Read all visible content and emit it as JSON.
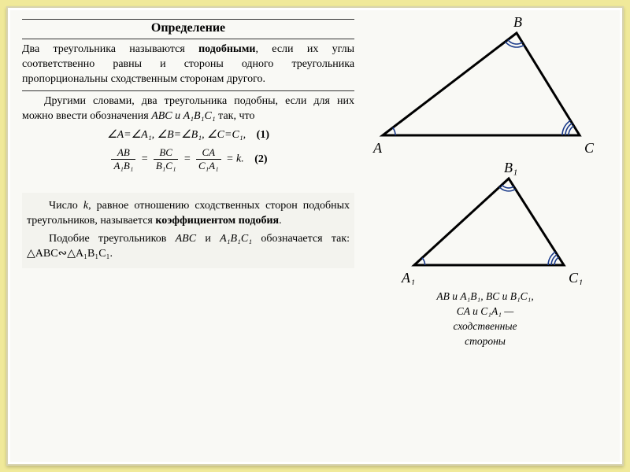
{
  "heading": "Определение",
  "definition": "Два треугольника называются подобными, если их углы соответственно равны и стороны одного треугольника пропорциональны сходственным сторонам другого.",
  "para2a": "Другими словами, два треугольника подобны, если для них можно ввести обозначения ",
  "para2b": " так, что",
  "abc_text": "ABC и A₁B₁C₁",
  "eq1": "∠A=∠A₁,  ∠B=∠B₁,  ∠C=C₁,",
  "eq1num": "(1)",
  "frac1_num": "AB",
  "frac1_den": "A₁B₁",
  "frac2_num": "BC",
  "frac2_den": "B₁C₁",
  "frac3_num": "CA",
  "frac3_den": "C₁A₁",
  "eq2_tail": " = k.",
  "eq2num": "(2)",
  "para3a": "Число ",
  "para3_k": "k",
  "para3b": ", равное отношению сходственных сторон подобных треугольников, называется ",
  "para3_bold": "коэффициентом подобия",
  "para3c": ".",
  "para4a": "Подобие треугольников ",
  "para4_t1": "ABC",
  "para4b": " и ",
  "para4_t2": "A₁B₁C₁",
  "para4c": " обозначается так: △ABC∾△A₁B₁C₁.",
  "triangle1": {
    "labels": {
      "A": "A",
      "B": "B",
      "C": "C"
    },
    "points": {
      "A": [
        20,
        150
      ],
      "B": [
        190,
        20
      ],
      "C": [
        270,
        150
      ]
    },
    "stroke": "#000000",
    "arc_color": "#1a3a8a"
  },
  "triangle2": {
    "labels": {
      "A": "A₁",
      "B": "B₁",
      "C": "C₁"
    },
    "points": {
      "A": [
        40,
        135
      ],
      "B": [
        160,
        25
      ],
      "C": [
        230,
        135
      ]
    },
    "stroke": "#000000",
    "arc_color": "#1a3a8a"
  },
  "caption_line1": "AB и A₁B₁, BC и B₁C₁,",
  "caption_line2": "CA и C₁A₁ —",
  "caption_line3": "сходственные",
  "caption_line4": "стороны",
  "colors": {
    "outer_bg": "#f0e99a",
    "inner_bg": "#f9f9f5",
    "text": "#1a1a1a"
  }
}
